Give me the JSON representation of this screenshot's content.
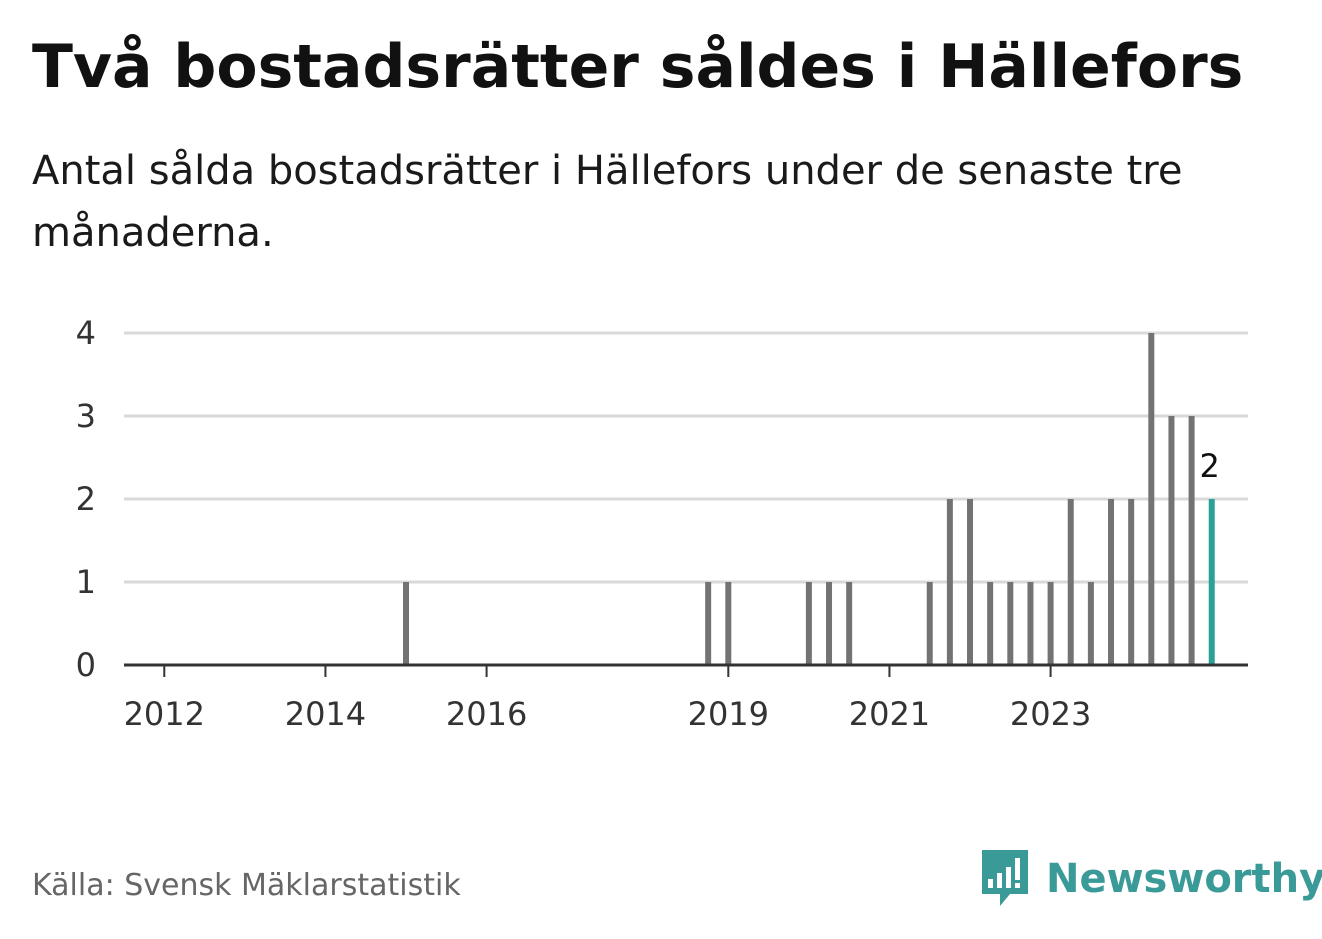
{
  "header": {
    "title": "Två bostadsrätter såldes i Hällefors",
    "subtitle": "Antal sålda bostadsrätter i Hällefors under de senaste tre månaderna."
  },
  "footer": {
    "source": "Källa: Svensk Mäklarstatistik",
    "brand": "Newsworthy",
    "brand_icon": "bar-chart-speech-bubble-icon"
  },
  "colors": {
    "bar": "#737373",
    "highlight": "#2aa198",
    "grid": "#d9d9d9",
    "axis": "#333333",
    "brand": "#3a9a97"
  },
  "chart_data": {
    "type": "bar",
    "title": "Två bostadsrätter såldes i Hällefors",
    "subtitle": "Antal sålda bostadsrätter i Hällefors under de senaste tre månaderna.",
    "x_unit": "quarter",
    "xlabel": "",
    "ylabel": "",
    "ylim": [
      0,
      4
    ],
    "yticks": [
      0,
      1,
      2,
      3,
      4
    ],
    "xticks": [
      "2012",
      "2014",
      "2016",
      "2019",
      "2021",
      "2023"
    ],
    "grid": true,
    "legend": "none",
    "highlight_label": "2",
    "data": [
      {
        "period": "2015 Q1",
        "value": 1
      },
      {
        "period": "2018 Q4",
        "value": 1
      },
      {
        "period": "2019 Q1",
        "value": 1
      },
      {
        "period": "2020 Q1",
        "value": 1
      },
      {
        "period": "2020 Q2",
        "value": 1
      },
      {
        "period": "2020 Q3",
        "value": 1
      },
      {
        "period": "2021 Q3",
        "value": 1
      },
      {
        "period": "2021 Q4",
        "value": 2
      },
      {
        "period": "2022 Q1",
        "value": 2
      },
      {
        "period": "2022 Q2",
        "value": 1
      },
      {
        "period": "2022 Q3",
        "value": 1
      },
      {
        "period": "2022 Q4",
        "value": 1
      },
      {
        "period": "2023 Q1",
        "value": 1
      },
      {
        "period": "2023 Q2",
        "value": 2
      },
      {
        "period": "2023 Q3",
        "value": 1
      },
      {
        "period": "2023 Q4",
        "value": 2
      },
      {
        "period": "2024 Q1",
        "value": 2
      },
      {
        "period": "2024 Q2",
        "value": 4
      },
      {
        "period": "2024 Q3",
        "value": 3
      },
      {
        "period": "2024 Q4",
        "value": 3
      },
      {
        "period": "2025 Q1",
        "value": 2,
        "highlight": true
      }
    ]
  }
}
